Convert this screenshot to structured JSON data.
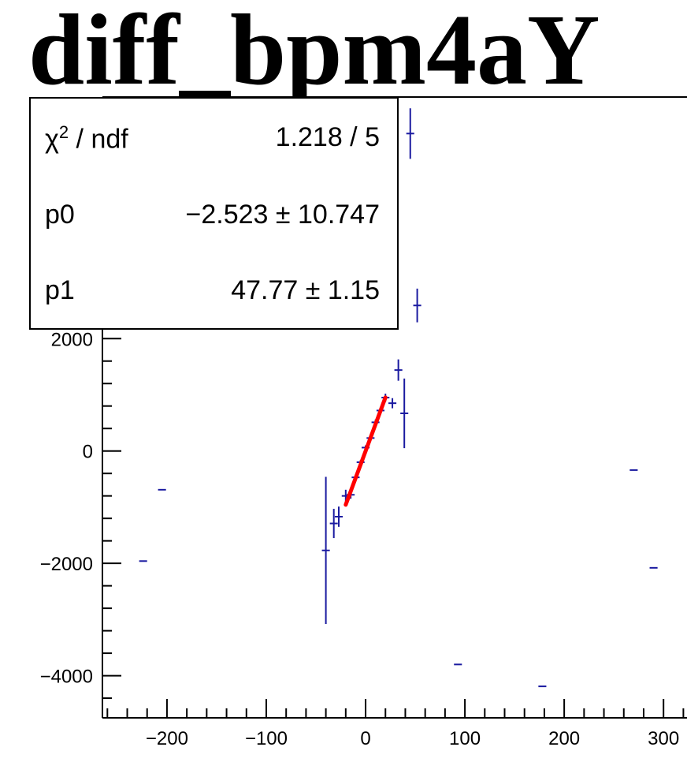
{
  "chart_data": {
    "type": "scatter",
    "title": "diff_bpm4aY",
    "xlim": [
      -265,
      330
    ],
    "ylim": [
      -4750,
      6300
    ],
    "x_ticks": [
      -200,
      -100,
      0,
      100,
      200,
      300
    ],
    "x_tick_labels": [
      "−200",
      "−100",
      "0",
      "100",
      "200",
      "300"
    ],
    "y_ticks": [
      -4000,
      -2000,
      0,
      2000
    ],
    "y_tick_labels": [
      "−4000",
      "−2000",
      "0",
      "2000"
    ],
    "points": [
      {
        "x": -224,
        "y": -1960,
        "xerr": 4,
        "yerr": 0
      },
      {
        "x": -205,
        "y": -690,
        "xerr": 4,
        "yerr": 0
      },
      {
        "x": -40,
        "y": -1770,
        "xerr": 4,
        "yerr": 1310
      },
      {
        "x": -32,
        "y": -1290,
        "xerr": 4,
        "yerr": 260
      },
      {
        "x": -27,
        "y": -1170,
        "xerr": 4,
        "yerr": 180
      },
      {
        "x": -20,
        "y": -800,
        "xerr": 4,
        "yerr": 110
      },
      {
        "x": -15,
        "y": -780,
        "xerr": 4,
        "yerr": 70
      },
      {
        "x": -10,
        "y": -470,
        "xerr": 4,
        "yerr": 50
      },
      {
        "x": -5,
        "y": -200,
        "xerr": 4,
        "yerr": 40
      },
      {
        "x": 0,
        "y": 60,
        "xerr": 4,
        "yerr": 40
      },
      {
        "x": 5,
        "y": 230,
        "xerr": 4,
        "yerr": 40
      },
      {
        "x": 10,
        "y": 510,
        "xerr": 4,
        "yerr": 50
      },
      {
        "x": 15,
        "y": 720,
        "xerr": 4,
        "yerr": 60
      },
      {
        "x": 20,
        "y": 950,
        "xerr": 4,
        "yerr": 70
      },
      {
        "x": 27,
        "y": 850,
        "xerr": 4,
        "yerr": 90
      },
      {
        "x": 33,
        "y": 1440,
        "xerr": 4,
        "yerr": 190
      },
      {
        "x": 39,
        "y": 670,
        "xerr": 4,
        "yerr": 620
      },
      {
        "x": 45,
        "y": 5650,
        "xerr": 4,
        "yerr": 450
      },
      {
        "x": 52,
        "y": 2590,
        "xerr": 4,
        "yerr": 300
      },
      {
        "x": 93,
        "y": -3800,
        "xerr": 4,
        "yerr": 0
      },
      {
        "x": 178,
        "y": -4190,
        "xerr": 4,
        "yerr": 0
      },
      {
        "x": 270,
        "y": -340,
        "xerr": 4,
        "yerr": 0
      },
      {
        "x": 290,
        "y": -2080,
        "xerr": 4,
        "yerr": 0
      }
    ],
    "fit": {
      "p0": -2.523,
      "p1": 47.77,
      "x_range": [
        -20,
        20
      ]
    },
    "colors": {
      "points": "#1a1aa0",
      "fit": "#ff0000",
      "axis": "#000000"
    },
    "stats": [
      {
        "name_html": "χ<sup>2</sup> / ndf",
        "value": "1.218 / 5"
      },
      {
        "name_html": "p0",
        "value": "−2.523 ± 10.747"
      },
      {
        "name_html": "p1",
        "value": "47.77 ± 1.15"
      }
    ]
  }
}
